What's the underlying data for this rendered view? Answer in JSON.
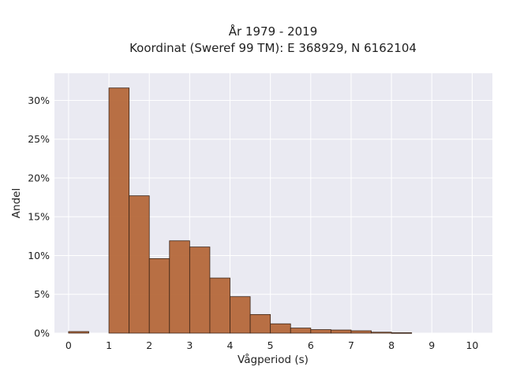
{
  "chart_data": {
    "type": "bar",
    "title_line1": "År 1979 - 2019",
    "title_line2": "Koordinat (Sweref 99 TM): E 368929, N 6162104",
    "xlabel": "Vågperiod (s)",
    "ylabel": "Andel",
    "xlim": [
      -0.35,
      10.5
    ],
    "ylim": [
      0,
      33.5
    ],
    "x_ticks": [
      0,
      1,
      2,
      3,
      4,
      5,
      6,
      7,
      8,
      9,
      10
    ],
    "y_ticks": [
      0,
      5,
      10,
      15,
      20,
      25,
      30
    ],
    "y_tick_labels": [
      "0%",
      "5%",
      "10%",
      "15%",
      "20%",
      "25%",
      "30%"
    ],
    "bin_width": 0.5,
    "bins": [
      {
        "x0": 0.0,
        "value": 0.2
      },
      {
        "x0": 0.5,
        "value": 0.0
      },
      {
        "x0": 1.0,
        "value": 31.6
      },
      {
        "x0": 1.5,
        "value": 17.7
      },
      {
        "x0": 2.0,
        "value": 9.6
      },
      {
        "x0": 2.5,
        "value": 11.9
      },
      {
        "x0": 3.0,
        "value": 11.1
      },
      {
        "x0": 3.5,
        "value": 7.1
      },
      {
        "x0": 4.0,
        "value": 4.7
      },
      {
        "x0": 4.5,
        "value": 2.4
      },
      {
        "x0": 5.0,
        "value": 1.2
      },
      {
        "x0": 5.5,
        "value": 0.65
      },
      {
        "x0": 6.0,
        "value": 0.45
      },
      {
        "x0": 6.5,
        "value": 0.4
      },
      {
        "x0": 7.0,
        "value": 0.3
      },
      {
        "x0": 7.5,
        "value": 0.12
      },
      {
        "x0": 8.0,
        "value": 0.05
      }
    ],
    "grid": true,
    "colors": {
      "bar_fill": "#b5683a",
      "bar_stroke": "#3b2416",
      "plot_background": "#eaeaf2",
      "grid": "#ffffff"
    }
  }
}
